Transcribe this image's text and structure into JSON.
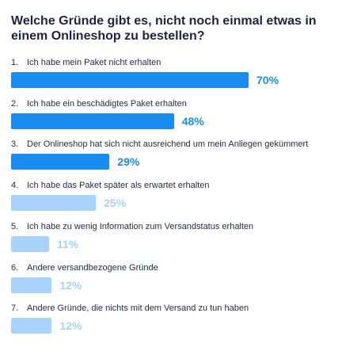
{
  "chart_data": {
    "type": "bar",
    "orientation": "horizontal",
    "title": "Welche Gründe gibt es, nicht noch einmal etwas in einem Onlineshop zu bestellen?",
    "items": [
      {
        "num": "1.",
        "label": "Ich habe mein Paket nicht erhalten",
        "value": 70,
        "value_label": "70%",
        "highlight": true
      },
      {
        "num": "2.",
        "label": "Ich habe ein beschädigtes Paket erhalten",
        "value": 48,
        "value_label": "48%",
        "highlight": true
      },
      {
        "num": "3.",
        "label": "Der Onlineshop hat sich nicht ausreichend um mein Anliegen gekümmert",
        "value": 29,
        "value_label": "29%",
        "highlight": true
      },
      {
        "num": "4.",
        "label": "Ich habe das Paket später als erwartet erhalten",
        "value": 25,
        "value_label": "25%",
        "highlight": false
      },
      {
        "num": "5.",
        "label": "Ich habe zu wenig Information zum Versandstatus erhalten",
        "value": 11,
        "value_label": "11%",
        "highlight": false
      },
      {
        "num": "6.",
        "label": "Andere versandbezogene Gründe",
        "value": 12,
        "value_label": "12%",
        "highlight": false
      },
      {
        "num": "7.",
        "label": "Andere Gründe, die nichts mit dem Versand zu tun haben",
        "value": 12,
        "value_label": "12%",
        "highlight": false
      }
    ],
    "colors": {
      "highlight_bar": "#1a8cf0",
      "highlight_text": "#1a8cf0",
      "muted_bar": "#a9d3fb",
      "muted_text": "#a9d3fb"
    }
  }
}
